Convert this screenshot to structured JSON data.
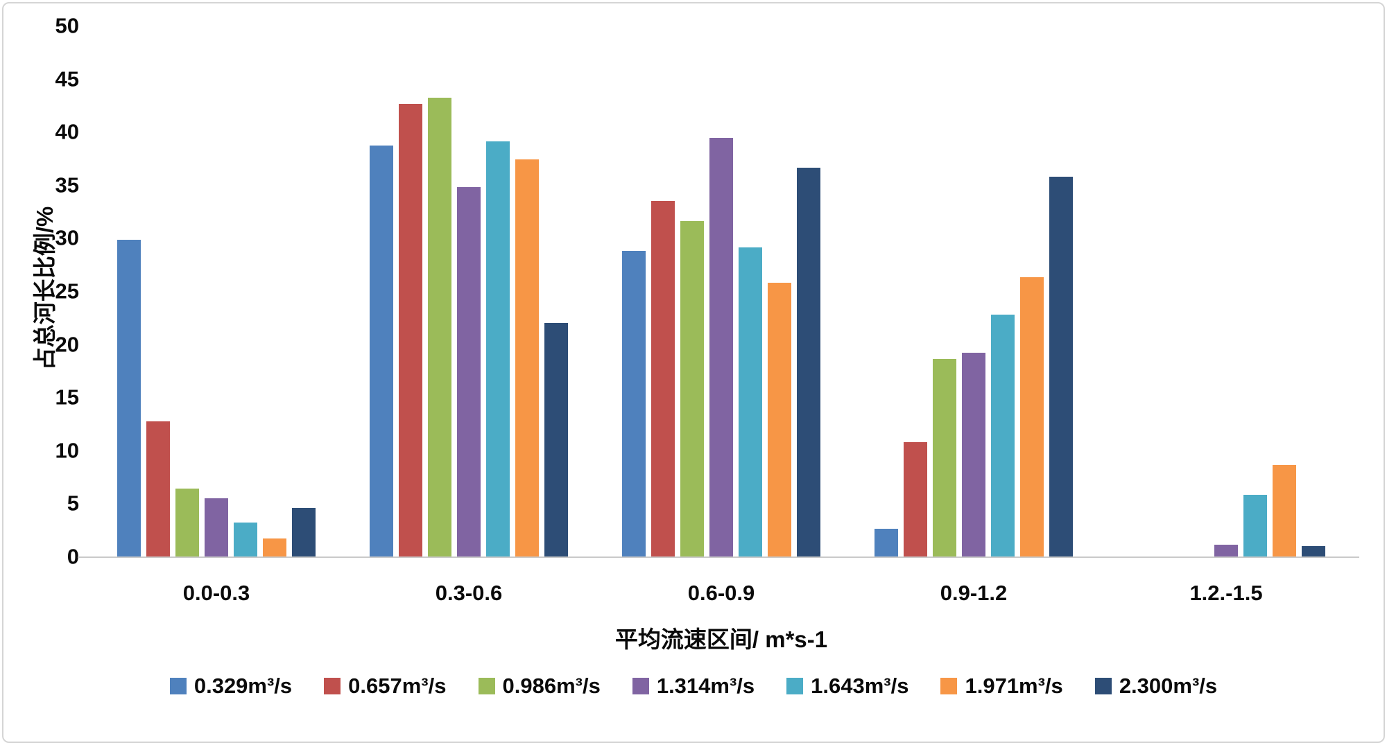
{
  "figure": {
    "background": "#FFFFFF",
    "border_color": "#D5D5D5",
    "axis_line_color": "#C9C9C9",
    "text_color": "#0A0A0A"
  },
  "chart_data": {
    "type": "bar",
    "title": "",
    "ylabel": "占总河长比例/%",
    "xlabel": "平均流速区间/ m*s-1",
    "ylim": [
      0,
      50
    ],
    "ytick_step": 5,
    "yticks": [
      0,
      5,
      10,
      15,
      20,
      25,
      30,
      35,
      40,
      45,
      50
    ],
    "grid": false,
    "legend_position": "bottom",
    "categories": [
      "0.0-0.3",
      "0.3-0.6",
      "0.6-0.9",
      "0.9-1.2",
      "1.2.-1.5"
    ],
    "series": [
      {
        "name": "0.329m³/s",
        "color": "#4F81BD",
        "values": [
          29.8,
          38.7,
          28.8,
          2.6,
          0
        ]
      },
      {
        "name": "0.657m³/s",
        "color": "#C0504D",
        "values": [
          12.7,
          42.6,
          33.5,
          10.8,
          0
        ]
      },
      {
        "name": "0.986m³/s",
        "color": "#9BBB59",
        "values": [
          6.4,
          43.2,
          31.6,
          18.6,
          0
        ]
      },
      {
        "name": "1.314m³/s",
        "color": "#8064A2",
        "values": [
          5.5,
          34.8,
          39.4,
          19.2,
          1.1
        ]
      },
      {
        "name": "1.643m³/s",
        "color": "#4BACC6",
        "values": [
          3.2,
          39.1,
          29.1,
          22.8,
          5.8
        ]
      },
      {
        "name": "1.971m³/s",
        "color": "#F79646",
        "values": [
          1.7,
          37.4,
          25.8,
          26.3,
          8.6
        ]
      },
      {
        "name": "2.300m³/s",
        "color": "#2D4D76",
        "values": [
          4.6,
          22.0,
          36.6,
          35.8,
          1.0
        ]
      }
    ]
  }
}
